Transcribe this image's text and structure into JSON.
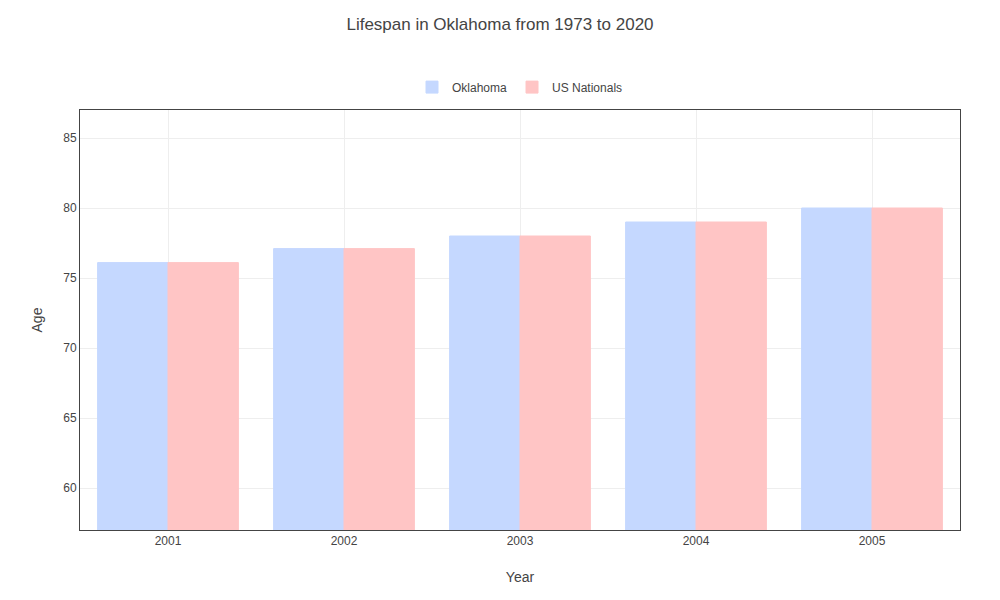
{
  "chart_data": {
    "type": "bar",
    "title": "Lifespan in Oklahoma from 1973 to 2020",
    "xlabel": "Year",
    "ylabel": "Age",
    "categories": [
      "2001",
      "2002",
      "2003",
      "2004",
      "2005"
    ],
    "series": [
      {
        "name": "Oklahoma",
        "color": "#c5d8ff",
        "values": [
          76.1,
          77.1,
          78.0,
          79.0,
          80.0
        ]
      },
      {
        "name": "US Nationals",
        "color": "#ffc5c5",
        "values": [
          76.1,
          77.1,
          78.0,
          79.0,
          80.0
        ]
      }
    ],
    "ylim": [
      57,
      87
    ],
    "yticks": [
      60,
      65,
      70,
      75,
      80,
      85
    ],
    "grid": true,
    "legend": "top"
  }
}
